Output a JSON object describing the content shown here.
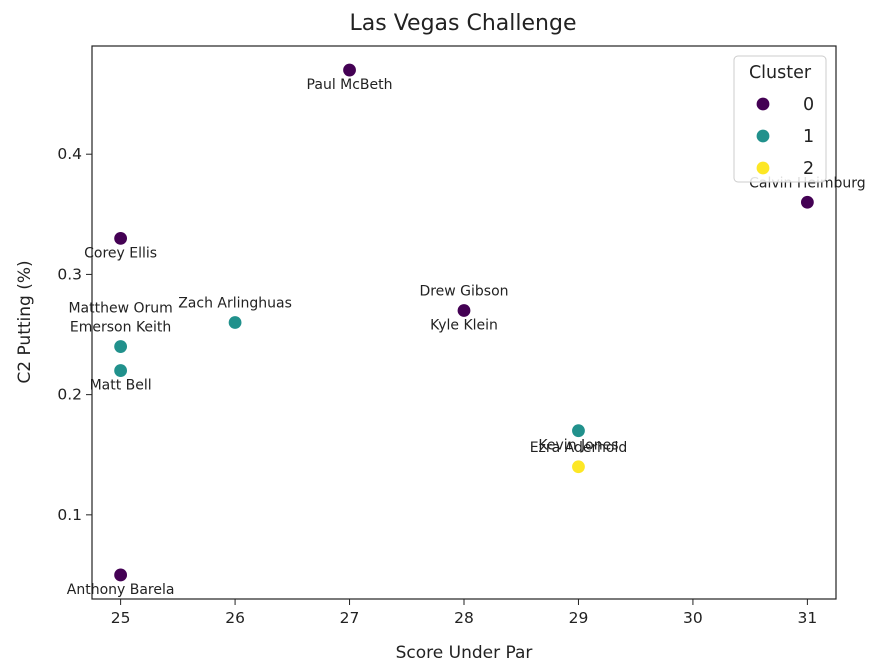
{
  "chart_data": {
    "type": "scatter",
    "title": "Las Vegas Challenge",
    "xlabel": "Score Under Par",
    "ylabel": "C2 Putting (%)",
    "xlim": [
      24.75,
      31.25
    ],
    "ylim": [
      0.03,
      0.49
    ],
    "xticks": [
      25,
      26,
      27,
      28,
      29,
      30,
      31
    ],
    "xtick_labels": [
      "25",
      "26",
      "27",
      "28",
      "29",
      "30",
      "31"
    ],
    "yticks": [
      0.1,
      0.2,
      0.3,
      0.4
    ],
    "ytick_labels": [
      "0.1",
      "0.2",
      "0.3",
      "0.4"
    ],
    "grid": false,
    "legend": {
      "title": "Cluster",
      "placement": "top-right",
      "entries": [
        {
          "label": "0",
          "color": "#440154"
        },
        {
          "label": "1",
          "color": "#21918c"
        },
        {
          "label": "2",
          "color": "#fde725"
        }
      ]
    },
    "points": [
      {
        "name": "Paul McBeth",
        "x": 27,
        "y": 0.47,
        "cluster": 0,
        "label_pos": "below"
      },
      {
        "name": "Calvin Heimburg",
        "x": 31,
        "y": 0.36,
        "cluster": 0,
        "label_pos": "above"
      },
      {
        "name": "Corey Ellis",
        "x": 25,
        "y": 0.33,
        "cluster": 0,
        "label_pos": "below"
      },
      {
        "name": "Drew Gibson",
        "x": 28,
        "y": 0.27,
        "cluster": 0,
        "label_pos": "above"
      },
      {
        "name": "Kyle Klein",
        "x": 28,
        "y": 0.27,
        "cluster": 0,
        "label_pos": "below"
      },
      {
        "name": "Anthony Barela",
        "x": 25,
        "y": 0.05,
        "cluster": 0,
        "label_pos": "below"
      },
      {
        "name": "Zach Arlinghuas",
        "x": 26,
        "y": 0.26,
        "cluster": 1,
        "label_pos": "above"
      },
      {
        "name": "Matthew Orum",
        "x": 25,
        "y": 0.24,
        "cluster": 1,
        "label_pos": "above2"
      },
      {
        "name": "Emerson Keith",
        "x": 25,
        "y": 0.24,
        "cluster": 1,
        "label_pos": "above"
      },
      {
        "name": "Matt Bell",
        "x": 25,
        "y": 0.22,
        "cluster": 1,
        "label_pos": "below"
      },
      {
        "name": "Kevin Jones",
        "x": 29,
        "y": 0.17,
        "cluster": 1,
        "label_pos": "below"
      },
      {
        "name": "Ezra Aderhold",
        "x": 29,
        "y": 0.14,
        "cluster": 2,
        "label_pos": "above"
      }
    ]
  }
}
